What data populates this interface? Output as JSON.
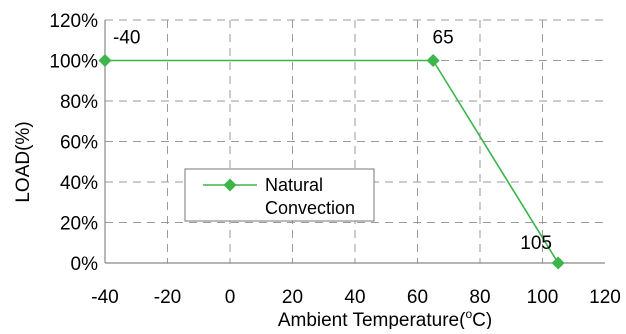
{
  "chart_data": {
    "type": "line",
    "xlabel": "Ambient Temperature(",
    "xlabel_unit_sup": "o",
    "xlabel_unit_tail": "C)",
    "ylabel": "LOAD(%)",
    "xlim": [
      -40,
      120
    ],
    "ylim": [
      0,
      120
    ],
    "x_ticks": [
      -40,
      -20,
      0,
      20,
      40,
      60,
      80,
      100,
      120
    ],
    "x_tick_labels": [
      "-40",
      "-20",
      "0",
      "20",
      "40",
      "60",
      "80",
      "100",
      "120"
    ],
    "y_ticks": [
      0,
      20,
      40,
      60,
      80,
      100,
      120
    ],
    "y_tick_labels": [
      "0%",
      "20%",
      "40%",
      "60%",
      "80%",
      "100%",
      "120%"
    ],
    "grid": true,
    "legend_position": "lower-left",
    "series": [
      {
        "name": "Natural Convection",
        "legend_line1": "Natural",
        "legend_line2": "Convection",
        "color": "#3cb54a",
        "marker": "diamond",
        "x": [
          -40,
          65,
          105
        ],
        "y": [
          100,
          100,
          0
        ]
      }
    ],
    "annotations": [
      {
        "text": "-40",
        "x": -40,
        "y": 100
      },
      {
        "text": "65",
        "x": 65,
        "y": 100
      },
      {
        "text": "105",
        "x": 105,
        "y": 0
      }
    ]
  }
}
